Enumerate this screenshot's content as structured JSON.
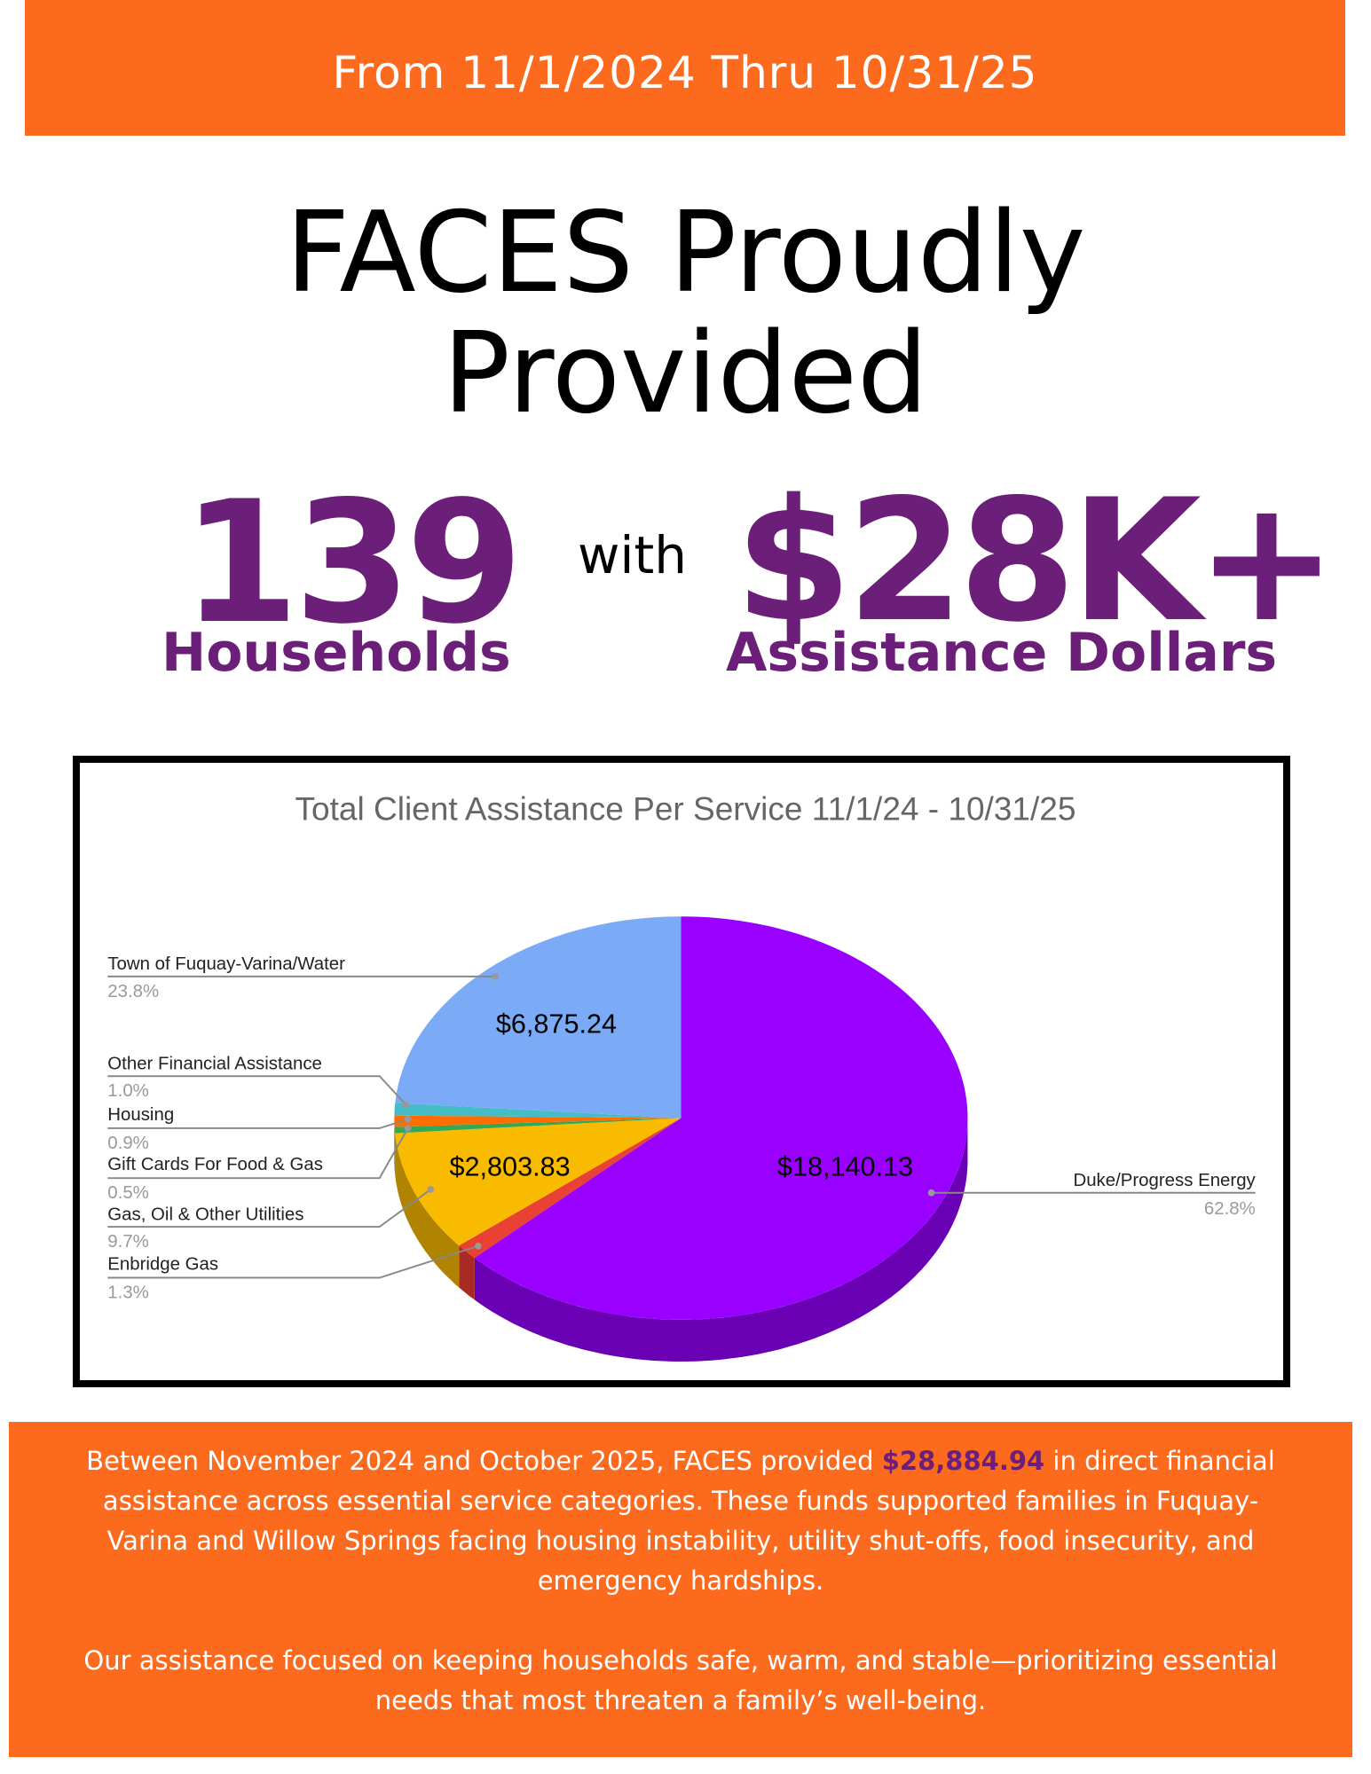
{
  "header": {
    "date_range": "From 11/1/2024 Thru 10/31/25"
  },
  "headline": {
    "line1": "FACES Proudly",
    "line2": "Provided"
  },
  "stats": {
    "households_value": "139",
    "households_label": "Households",
    "connector": "with",
    "dollars_value": "$28K+",
    "dollars_label": "Assistance Dollars"
  },
  "chart_data": {
    "type": "pie",
    "title": "Total Client Assistance Per Service 11/1/24 - 10/31/25",
    "slices": [
      {
        "label": "Duke/Progress Energy",
        "percent": 62.8,
        "value_label": "$18,140.13",
        "color": "#9900ff",
        "dark": "#6a00b3"
      },
      {
        "label": "Enbridge Gas",
        "percent": 1.3,
        "value_label": "",
        "color": "#e94235",
        "dark": "#a82a22"
      },
      {
        "label": "Gas, Oil & Other Utilities",
        "percent": 9.7,
        "value_label": "$2,803.83",
        "color": "#f9bb00",
        "dark": "#b08400"
      },
      {
        "label": "Gift Cards For Food & Gas",
        "percent": 0.5,
        "value_label": "",
        "color": "#34a853",
        "dark": "#25773b"
      },
      {
        "label": "Housing",
        "percent": 0.9,
        "value_label": "",
        "color": "#ff6d01",
        "dark": "#b34c00"
      },
      {
        "label": "Other Financial Assistance",
        "percent": 1.0,
        "value_label": "",
        "color": "#46bdc6",
        "dark": "#31858b"
      },
      {
        "label": "Town of Fuquay-Varina/Water",
        "percent": 23.8,
        "value_label": "$6,875.24",
        "color": "#7baaf7",
        "dark": "#5677ad"
      }
    ],
    "percent_labels": [
      "62.8%",
      "1.3%",
      "9.7%",
      "0.5%",
      "0.9%",
      "1.0%",
      "23.8%"
    ]
  },
  "summary": {
    "p1_before": "Between November 2024 and October 2025, FACES provided ",
    "p1_amount": "$28,884.94",
    "p1_after": " in direct financial assistance across essential service categories. These funds supported families in Fuquay-Varina and Willow Springs facing housing instability, utility shut-offs, food insecurity, and emergency hardships.",
    "p2": "Our assistance focused on keeping households safe, warm, and stable—prioritizing essential needs that most threaten a family’s well-being."
  }
}
